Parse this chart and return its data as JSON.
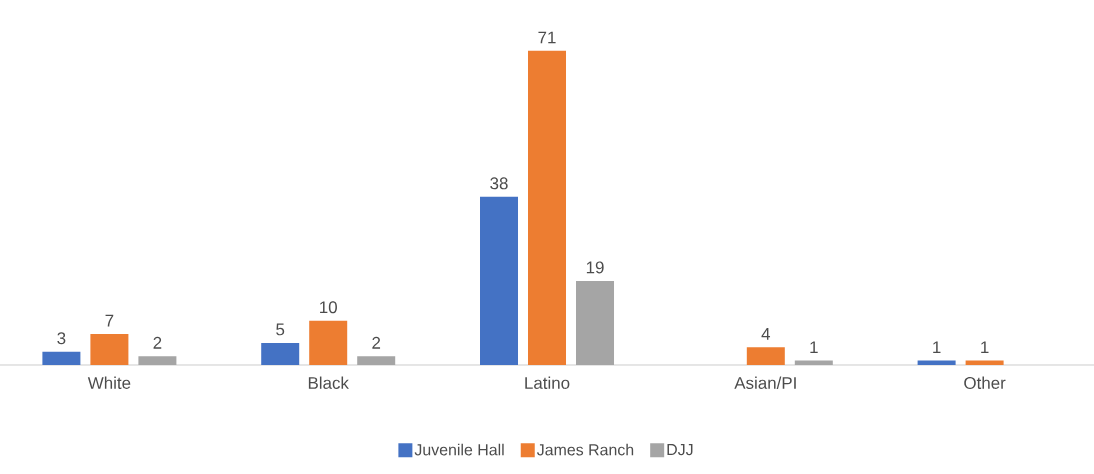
{
  "chart_data": {
    "type": "bar",
    "categories": [
      "White",
      "Black",
      "Latino",
      "Asian/PI",
      "Other"
    ],
    "series": [
      {
        "name": "Juvenile Hall",
        "color": "#4472c4",
        "values": [
          3,
          5,
          38,
          null,
          1
        ]
      },
      {
        "name": "James Ranch",
        "color": "#ed7d31",
        "values": [
          7,
          10,
          71,
          4,
          1
        ]
      },
      {
        "name": "DJJ",
        "color": "#a5a5a5",
        "values": [
          2,
          2,
          19,
          1,
          null
        ]
      }
    ],
    "data_labels": true,
    "legend": "bottom"
  }
}
